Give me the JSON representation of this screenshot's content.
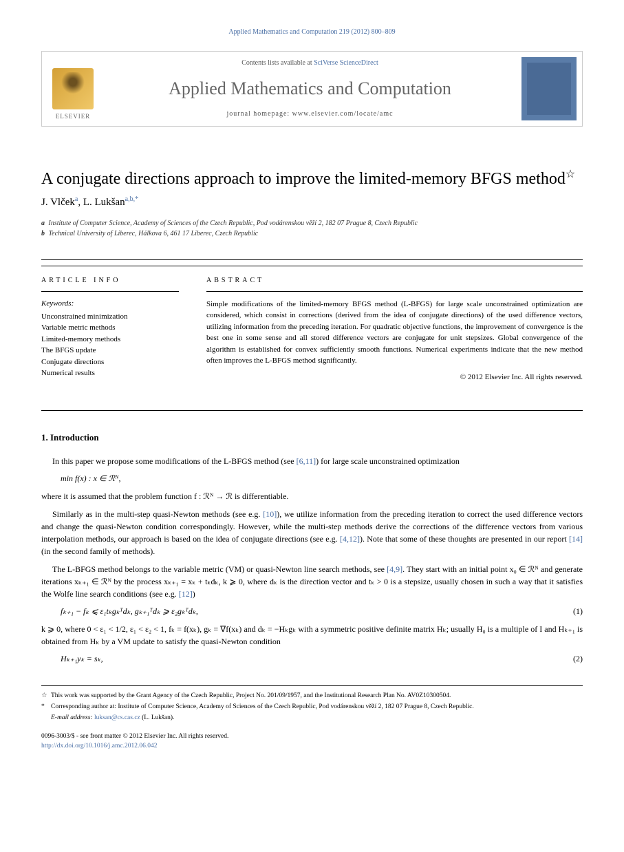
{
  "header": {
    "citation": "Applied Mathematics and Computation 219 (2012) 800–809",
    "contents_prefix": "Contents lists available at",
    "contents_link": "SciVerse ScienceDirect",
    "journal": "Applied Mathematics and Computation",
    "homepage_prefix": "journal homepage:",
    "homepage_url": "www.elsevier.com/locate/amc",
    "publisher_label": "ELSEVIER"
  },
  "title": "A conjugate directions approach to improve the limited-memory BFGS method",
  "title_star": "☆",
  "authors_line": {
    "a1_name": "J. Vlček",
    "a1_sup": "a",
    "a2_name": "L. Lukšan",
    "a2_sup": "a,b,",
    "corr_marker": "*"
  },
  "affiliations": {
    "a": "Institute of Computer Science, Academy of Sciences of the Czech Republic, Pod vodárenskou věží 2, 182 07 Prague 8, Czech Republic",
    "b": "Technical University of Liberec, Hálkova 6, 461 17 Liberec, Czech Republic"
  },
  "info": {
    "header": "ARTICLE INFO",
    "keywords_label": "Keywords:",
    "keywords": [
      "Unconstrained minimization",
      "Variable metric methods",
      "Limited-memory methods",
      "The BFGS update",
      "Conjugate directions",
      "Numerical results"
    ]
  },
  "abstract": {
    "header": "ABSTRACT",
    "text": "Simple modifications of the limited-memory BFGS method (L-BFGS) for large scale unconstrained optimization are considered, which consist in corrections (derived from the idea of conjugate directions) of the used difference vectors, utilizing information from the preceding iteration. For quadratic objective functions, the improvement of convergence is the best one in some sense and all stored difference vectors are conjugate for unit stepsizes. Global convergence of the algorithm is established for convex sufficiently smooth functions. Numerical experiments indicate that the new method often improves the L-BFGS method significantly.",
    "copyright": "© 2012 Elsevier Inc. All rights reserved."
  },
  "section1": {
    "heading": "1. Introduction",
    "p1_a": "In this paper we propose some modifications of the L-BFGS method (see ",
    "p1_ref": "[6,11]",
    "p1_b": ") for large scale unconstrained optimization",
    "eq_min": "min f(x) : x ∈ ℛᴺ,",
    "p2": "where it is assumed that the problem function f : ℛᴺ → ℛ is differentiable.",
    "p3_a": "Similarly as in the multi-step quasi-Newton methods (see e.g. ",
    "p3_ref1": "[10]",
    "p3_b": "), we utilize information from the preceding iteration to correct the used difference vectors and change the quasi-Newton condition correspondingly. However, while the multi-step methods derive the corrections of the difference vectors from various interpolation methods, our approach is based on the idea of conjugate directions (see e.g. ",
    "p3_ref2": "[4,12]",
    "p3_c": "). Note that some of these thoughts are presented in our report ",
    "p3_ref3": "[14]",
    "p3_d": " (in the second family of methods).",
    "p4_a": "The L-BFGS method belongs to the variable metric (VM) or quasi-Newton line search methods, see ",
    "p4_ref1": "[4,9]",
    "p4_b": ". They start with an initial point x₀ ∈ ℛᴺ and generate iterations xₖ₊₁ ∈ ℛᴺ by the process xₖ₊₁ = xₖ + tₖdₖ,  k ⩾ 0, where dₖ is the direction vector and tₖ > 0 is a stepsize, usually chosen in such a way that it satisfies the Wolfe line search conditions (see e.g. ",
    "p4_ref2": "[12]",
    "p4_c": ")",
    "eq1": "fₖ₊₁ − fₖ ⩽ ε₁tₖgₖᵀdₖ,    gₖ₊₁ᵀdₖ ⩾ ε₂gₖᵀdₖ,",
    "eq1_num": "(1)",
    "p5": "k ⩾ 0, where 0 < ε₁ < 1/2,  ε₁ < ε₂ < 1,  fₖ = f(xₖ),  gₖ = ∇f(xₖ) and dₖ = −Hₖgₖ with a symmetric positive definite matrix Hₖ; usually H₀ is a multiple of I and Hₖ₊₁ is obtained from Hₖ by a VM update to satisfy the quasi-Newton condition",
    "eq2": "Hₖ₊₁yₖ = sₖ,",
    "eq2_num": "(2)"
  },
  "footnotes": {
    "star": "This work was supported by the Grant Agency of the Czech Republic, Project No. 201/09/1957, and the Institutional Research Plan No. AV0Z10300504.",
    "corr": "Corresponding author at: Institute of Computer Science, Academy of Sciences of the Czech Republic, Pod vodárenskou věží 2, 182 07 Prague 8, Czech Republic.",
    "email_label": "E-mail address:",
    "email": "luksan@cs.cas.cz",
    "email_name": "(L. Lukšan)."
  },
  "footer": {
    "line1": "0096-3003/$ - see front matter © 2012 Elsevier Inc. All rights reserved.",
    "doi": "http://dx.doi.org/10.1016/j.amc.2012.06.042"
  },
  "colors": {
    "link": "#4a6fa5",
    "grey_text": "#666",
    "border": "#ccc"
  }
}
